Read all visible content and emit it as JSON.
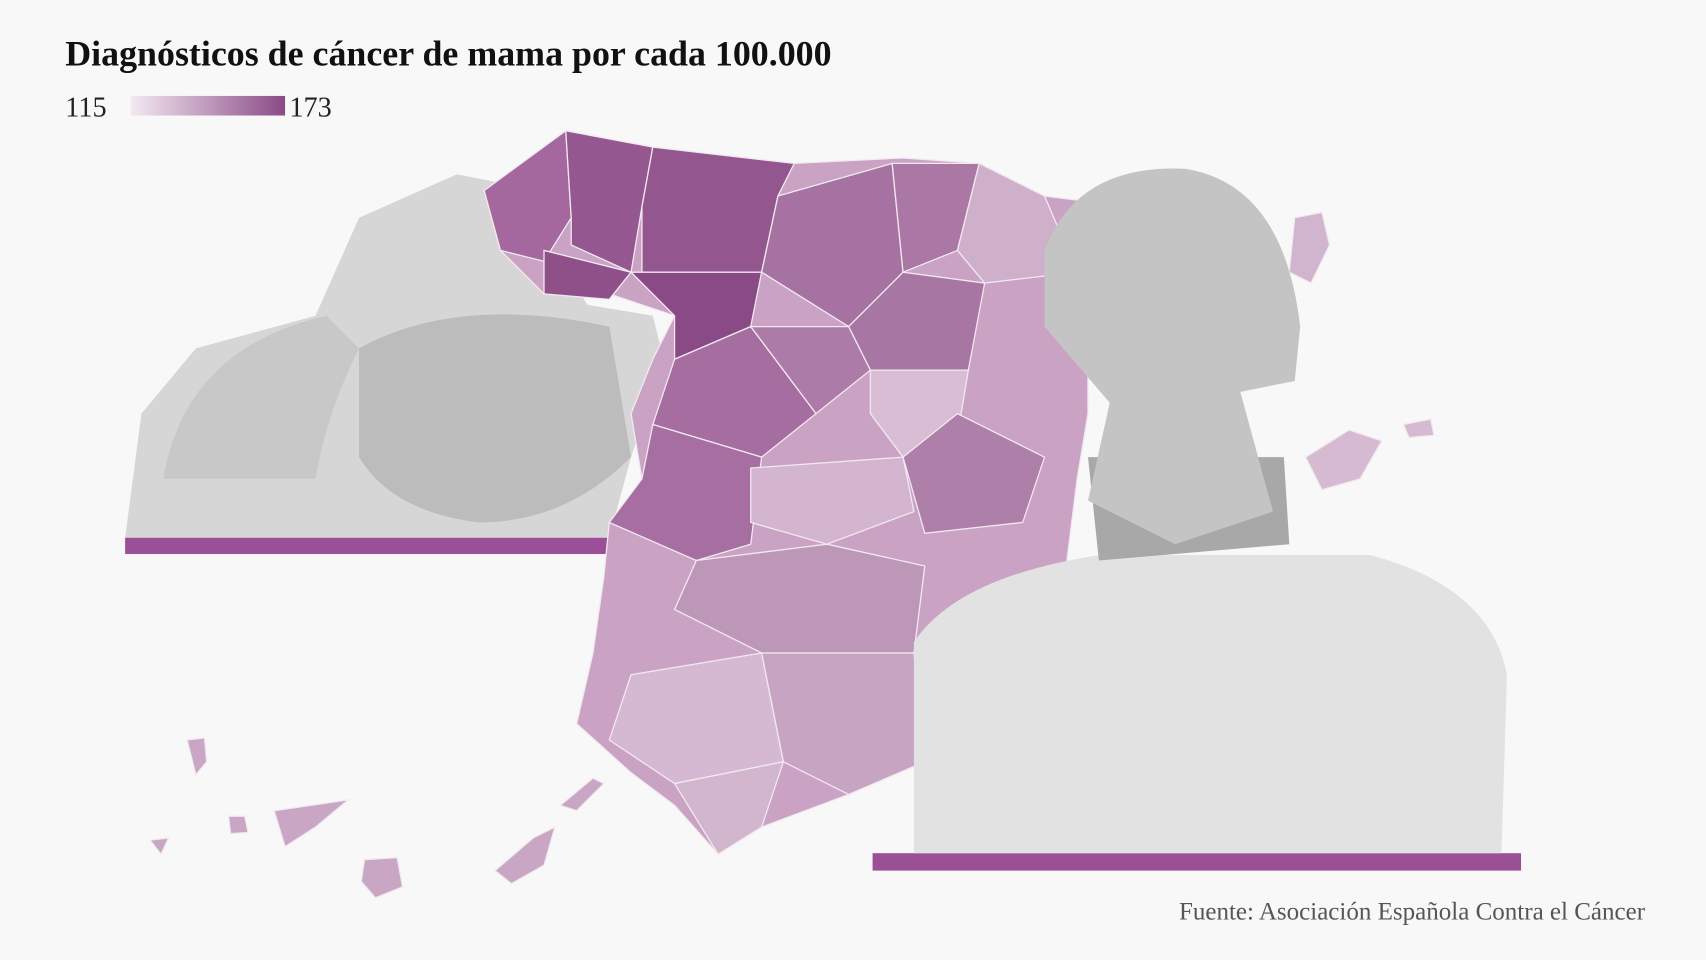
{
  "title": "Diagnósticos de cáncer de mama por cada 100.000",
  "legend": {
    "min": 115,
    "max": 173
  },
  "source": "Fuente: Asociación Española Contra el Cáncer"
}
